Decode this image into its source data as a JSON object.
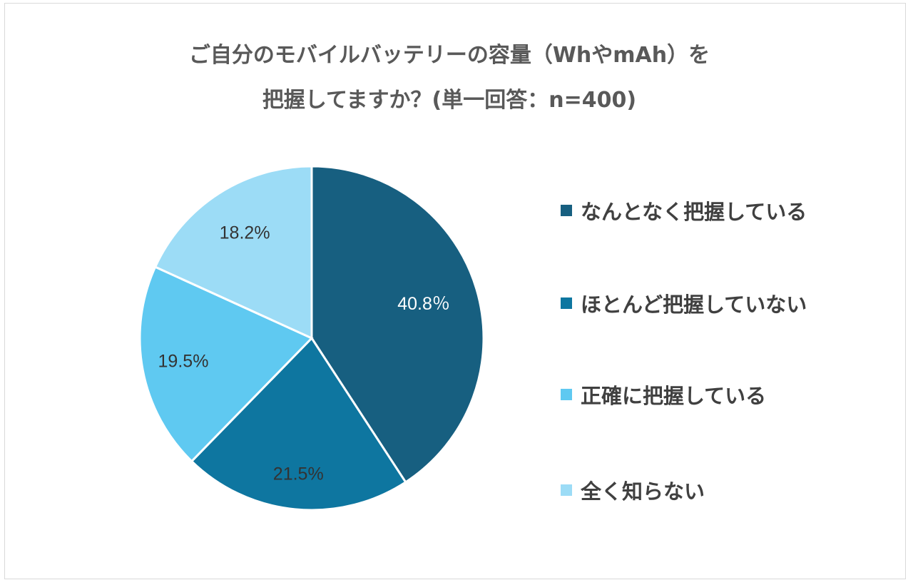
{
  "chart_data": {
    "type": "pie",
    "title_lines": [
      "ご自分のモバイルバッテリーの容量（WhやmAh）を",
      "把握してますか？(単一回答：n=400)"
    ],
    "categories": [
      "なんとなく把握している",
      "ほとんど把握していない",
      "正確に把握している",
      "全く知らない"
    ],
    "values": [
      40.8,
      21.5,
      19.5,
      18.2
    ],
    "data_labels": [
      "40.8％",
      "21.5%",
      "19.5%",
      "18.2%"
    ],
    "colors": [
      "#175f80",
      "#0e76a0",
      "#5fc9f1",
      "#9cdcf6"
    ],
    "label_colors": [
      "#ffffff",
      "#333333",
      "#333333",
      "#333333"
    ],
    "start": "top",
    "direction": "clockwise",
    "legend_position": "right"
  }
}
